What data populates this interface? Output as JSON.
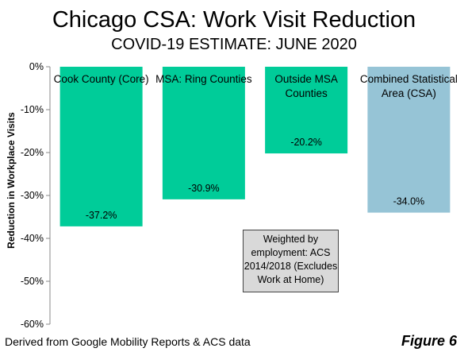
{
  "chart_data": {
    "type": "bar",
    "title": "Chicago CSA: Work Visit Reduction",
    "subtitle": "COVID-19 ESTIMATE: JUNE 2020",
    "ylabel": "Reduction in Workplace Visits",
    "xlabel": "",
    "ylim": [
      -60,
      0
    ],
    "yticks": [
      "0%",
      "-10%",
      "-20%",
      "-30%",
      "-40%",
      "-50%",
      "-60%"
    ],
    "grid": false,
    "categories": [
      {
        "lines": [
          "Cook County (Core)"
        ]
      },
      {
        "lines": [
          "MSA: Ring Counties"
        ]
      },
      {
        "lines": [
          "Outside MSA",
          "Counties"
        ]
      },
      {
        "lines": [
          "Combined Statistical",
          "Area (CSA)"
        ]
      }
    ],
    "values": [
      -37.2,
      -30.9,
      -20.2,
      -34.0
    ],
    "value_labels": [
      "-37.2%",
      "-30.9%",
      "-20.2%",
      "-34.0%"
    ],
    "colors": [
      "#00cc99",
      "#00cc99",
      "#00cc99",
      "#96c4d6"
    ],
    "annotation": [
      "Weighted by",
      "employment: ACS",
      "2014/2018 (Excludes",
      "Work at Home)"
    ],
    "source": "Derived from Google Mobility Reports & ACS data",
    "figure_label": "Figure 6"
  }
}
